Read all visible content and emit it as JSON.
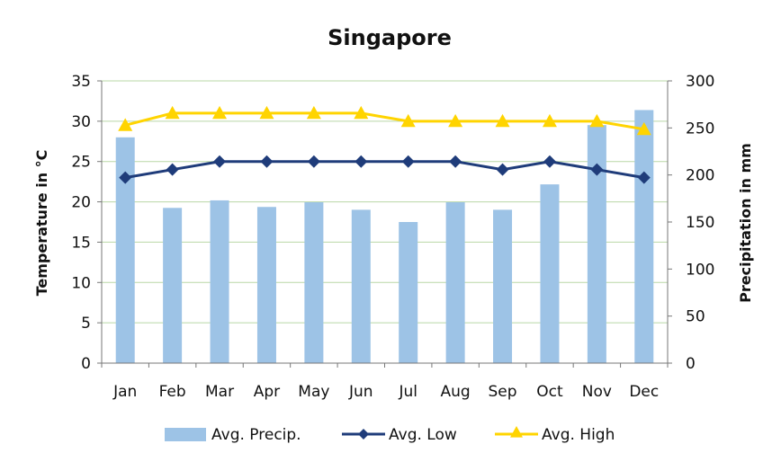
{
  "chart_data": {
    "type": "bar",
    "title": "Singapore",
    "categories": [
      "Jan",
      "Feb",
      "Mar",
      "Apr",
      "May",
      "Jun",
      "Jul",
      "Aug",
      "Sep",
      "Oct",
      "Nov",
      "Dec"
    ],
    "ylabel": "Temperature in °C",
    "y2label": "Precipitation in mm",
    "ylim": [
      0,
      35
    ],
    "y2lim": [
      0,
      300
    ],
    "yticks": [
      0,
      5,
      10,
      15,
      20,
      25,
      30,
      35
    ],
    "y2ticks": [
      0,
      50,
      100,
      150,
      200,
      250,
      300
    ],
    "grid": true,
    "legend_position": "bottom",
    "series": [
      {
        "name": "Avg. Precip.",
        "type": "bar",
        "axis": "right",
        "color": "#9DC3E6",
        "values": [
          240,
          165,
          173,
          166,
          171,
          163,
          150,
          171,
          163,
          190,
          253,
          269
        ]
      },
      {
        "name": "Avg. Low",
        "type": "line",
        "axis": "left",
        "color": "#1F3C7A",
        "marker": "diamond",
        "values": [
          23,
          24,
          25,
          25,
          25,
          25,
          25,
          25,
          24,
          25,
          24,
          23
        ]
      },
      {
        "name": "Avg. High",
        "type": "line",
        "axis": "left",
        "color": "#FFD400",
        "marker": "triangle",
        "values": [
          29.5,
          31,
          31,
          31,
          31,
          31,
          30,
          30,
          30,
          30,
          30,
          29
        ]
      }
    ]
  }
}
